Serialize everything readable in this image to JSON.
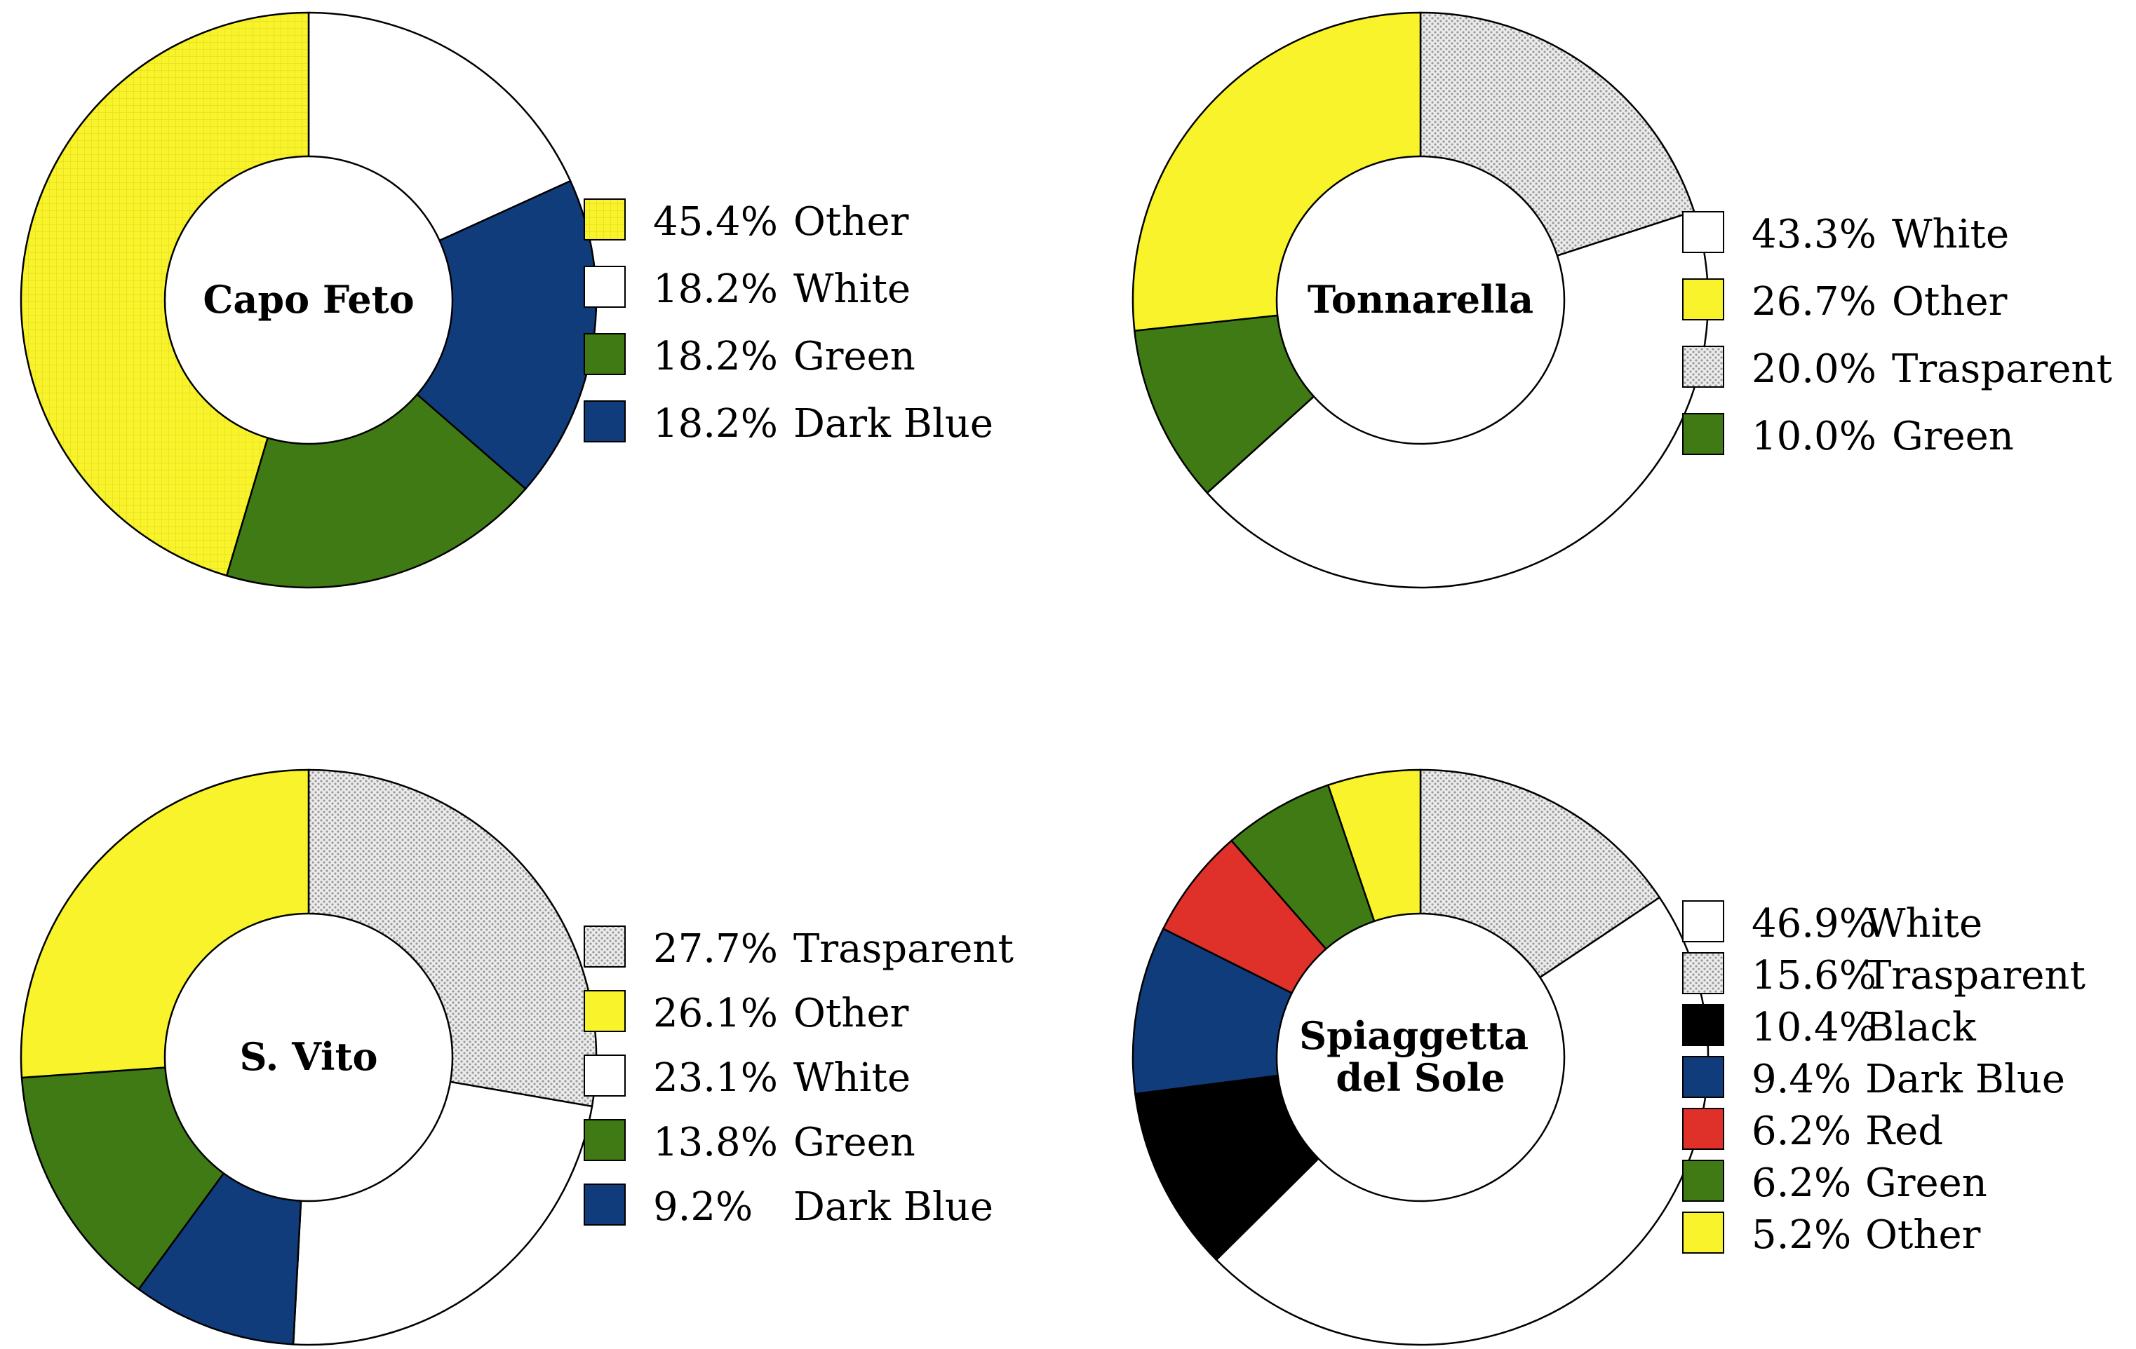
{
  "figure": {
    "colors": {
      "Other": "#f8f32b",
      "White": "#ffffff",
      "Green": "#3f7a14",
      "Dark Blue": "#113c7c",
      "Trasparent": "pattern-dots-gray",
      "Black": "#000000",
      "Red": "#e0302a"
    }
  },
  "chart_data": [
    {
      "type": "pie",
      "variant": "donut",
      "center_label": [
        "Capo Feto"
      ],
      "slices": [
        {
          "label": "Other",
          "pct_text": "45.4%",
          "value": 45.4,
          "color": "#f8f32b",
          "pattern": "grid"
        },
        {
          "label": "White",
          "pct_text": "18.2%",
          "value": 18.2,
          "color": "#ffffff"
        },
        {
          "label": "Green",
          "pct_text": "18.2%",
          "value": 18.2,
          "color": "#3f7a14"
        },
        {
          "label": "Dark Blue",
          "pct_text": "18.2%",
          "value": 18.2,
          "color": "#113c7c"
        }
      ],
      "clockwise_from_top": [
        "White",
        "Dark Blue",
        "Green",
        "Other"
      ],
      "legend_position": "right"
    },
    {
      "type": "pie",
      "variant": "donut",
      "center_label": [
        "Tonnarella"
      ],
      "slices": [
        {
          "label": "White",
          "pct_text": "43.3%",
          "value": 43.3,
          "color": "#ffffff"
        },
        {
          "label": "Other",
          "pct_text": "26.7%",
          "value": 26.7,
          "color": "#f8f32b"
        },
        {
          "label": "Trasparent",
          "pct_text": "20.0%",
          "value": 20.0,
          "color": "#e2e2e2",
          "pattern": "dots"
        },
        {
          "label": "Green",
          "pct_text": "10.0%",
          "value": 10.0,
          "color": "#3f7a14"
        }
      ],
      "clockwise_from_top": [
        "Trasparent",
        "White",
        "Green",
        "Other"
      ],
      "legend_position": "right"
    },
    {
      "type": "pie",
      "variant": "donut",
      "center_label": [
        "S. Vito"
      ],
      "slices": [
        {
          "label": "Trasparent",
          "pct_text": "27.7%",
          "value": 27.7,
          "color": "#e2e2e2",
          "pattern": "dots"
        },
        {
          "label": "Other",
          "pct_text": "26.1%",
          "value": 26.1,
          "color": "#f8f32b"
        },
        {
          "label": "White",
          "pct_text": "23.1%",
          "value": 23.1,
          "color": "#ffffff"
        },
        {
          "label": "Green",
          "pct_text": "13.8%",
          "value": 13.8,
          "color": "#3f7a14"
        },
        {
          "label": "Dark Blue",
          "pct_text": "9.2%",
          "value": 9.2,
          "color": "#113c7c"
        }
      ],
      "clockwise_from_top": [
        "Trasparent",
        "White",
        "Dark Blue",
        "Green",
        "Other"
      ],
      "legend_position": "right"
    },
    {
      "type": "pie",
      "variant": "donut",
      "center_label": [
        "Spiaggetta",
        "del Sole"
      ],
      "slices": [
        {
          "label": "White",
          "pct_text": "46.9%",
          "value": 46.9,
          "color": "#ffffff"
        },
        {
          "label": "Trasparent",
          "pct_text": "15.6%",
          "value": 15.6,
          "color": "#e2e2e2",
          "pattern": "dots"
        },
        {
          "label": "Black",
          "pct_text": "10.4%",
          "value": 10.4,
          "color": "#000000"
        },
        {
          "label": "Dark Blue",
          "pct_text": "9.4%",
          "value": 9.4,
          "color": "#113c7c"
        },
        {
          "label": "Red",
          "pct_text": "6.2%",
          "value": 6.2,
          "color": "#e0302a"
        },
        {
          "label": "Green",
          "pct_text": "6.2%",
          "value": 6.2,
          "color": "#3f7a14"
        },
        {
          "label": "Other",
          "pct_text": "5.2%",
          "value": 5.2,
          "color": "#f8f32b"
        }
      ],
      "clockwise_from_top": [
        "Trasparent",
        "White",
        "Black",
        "Dark Blue",
        "Red",
        "Green",
        "Other"
      ],
      "legend_position": "right"
    }
  ]
}
